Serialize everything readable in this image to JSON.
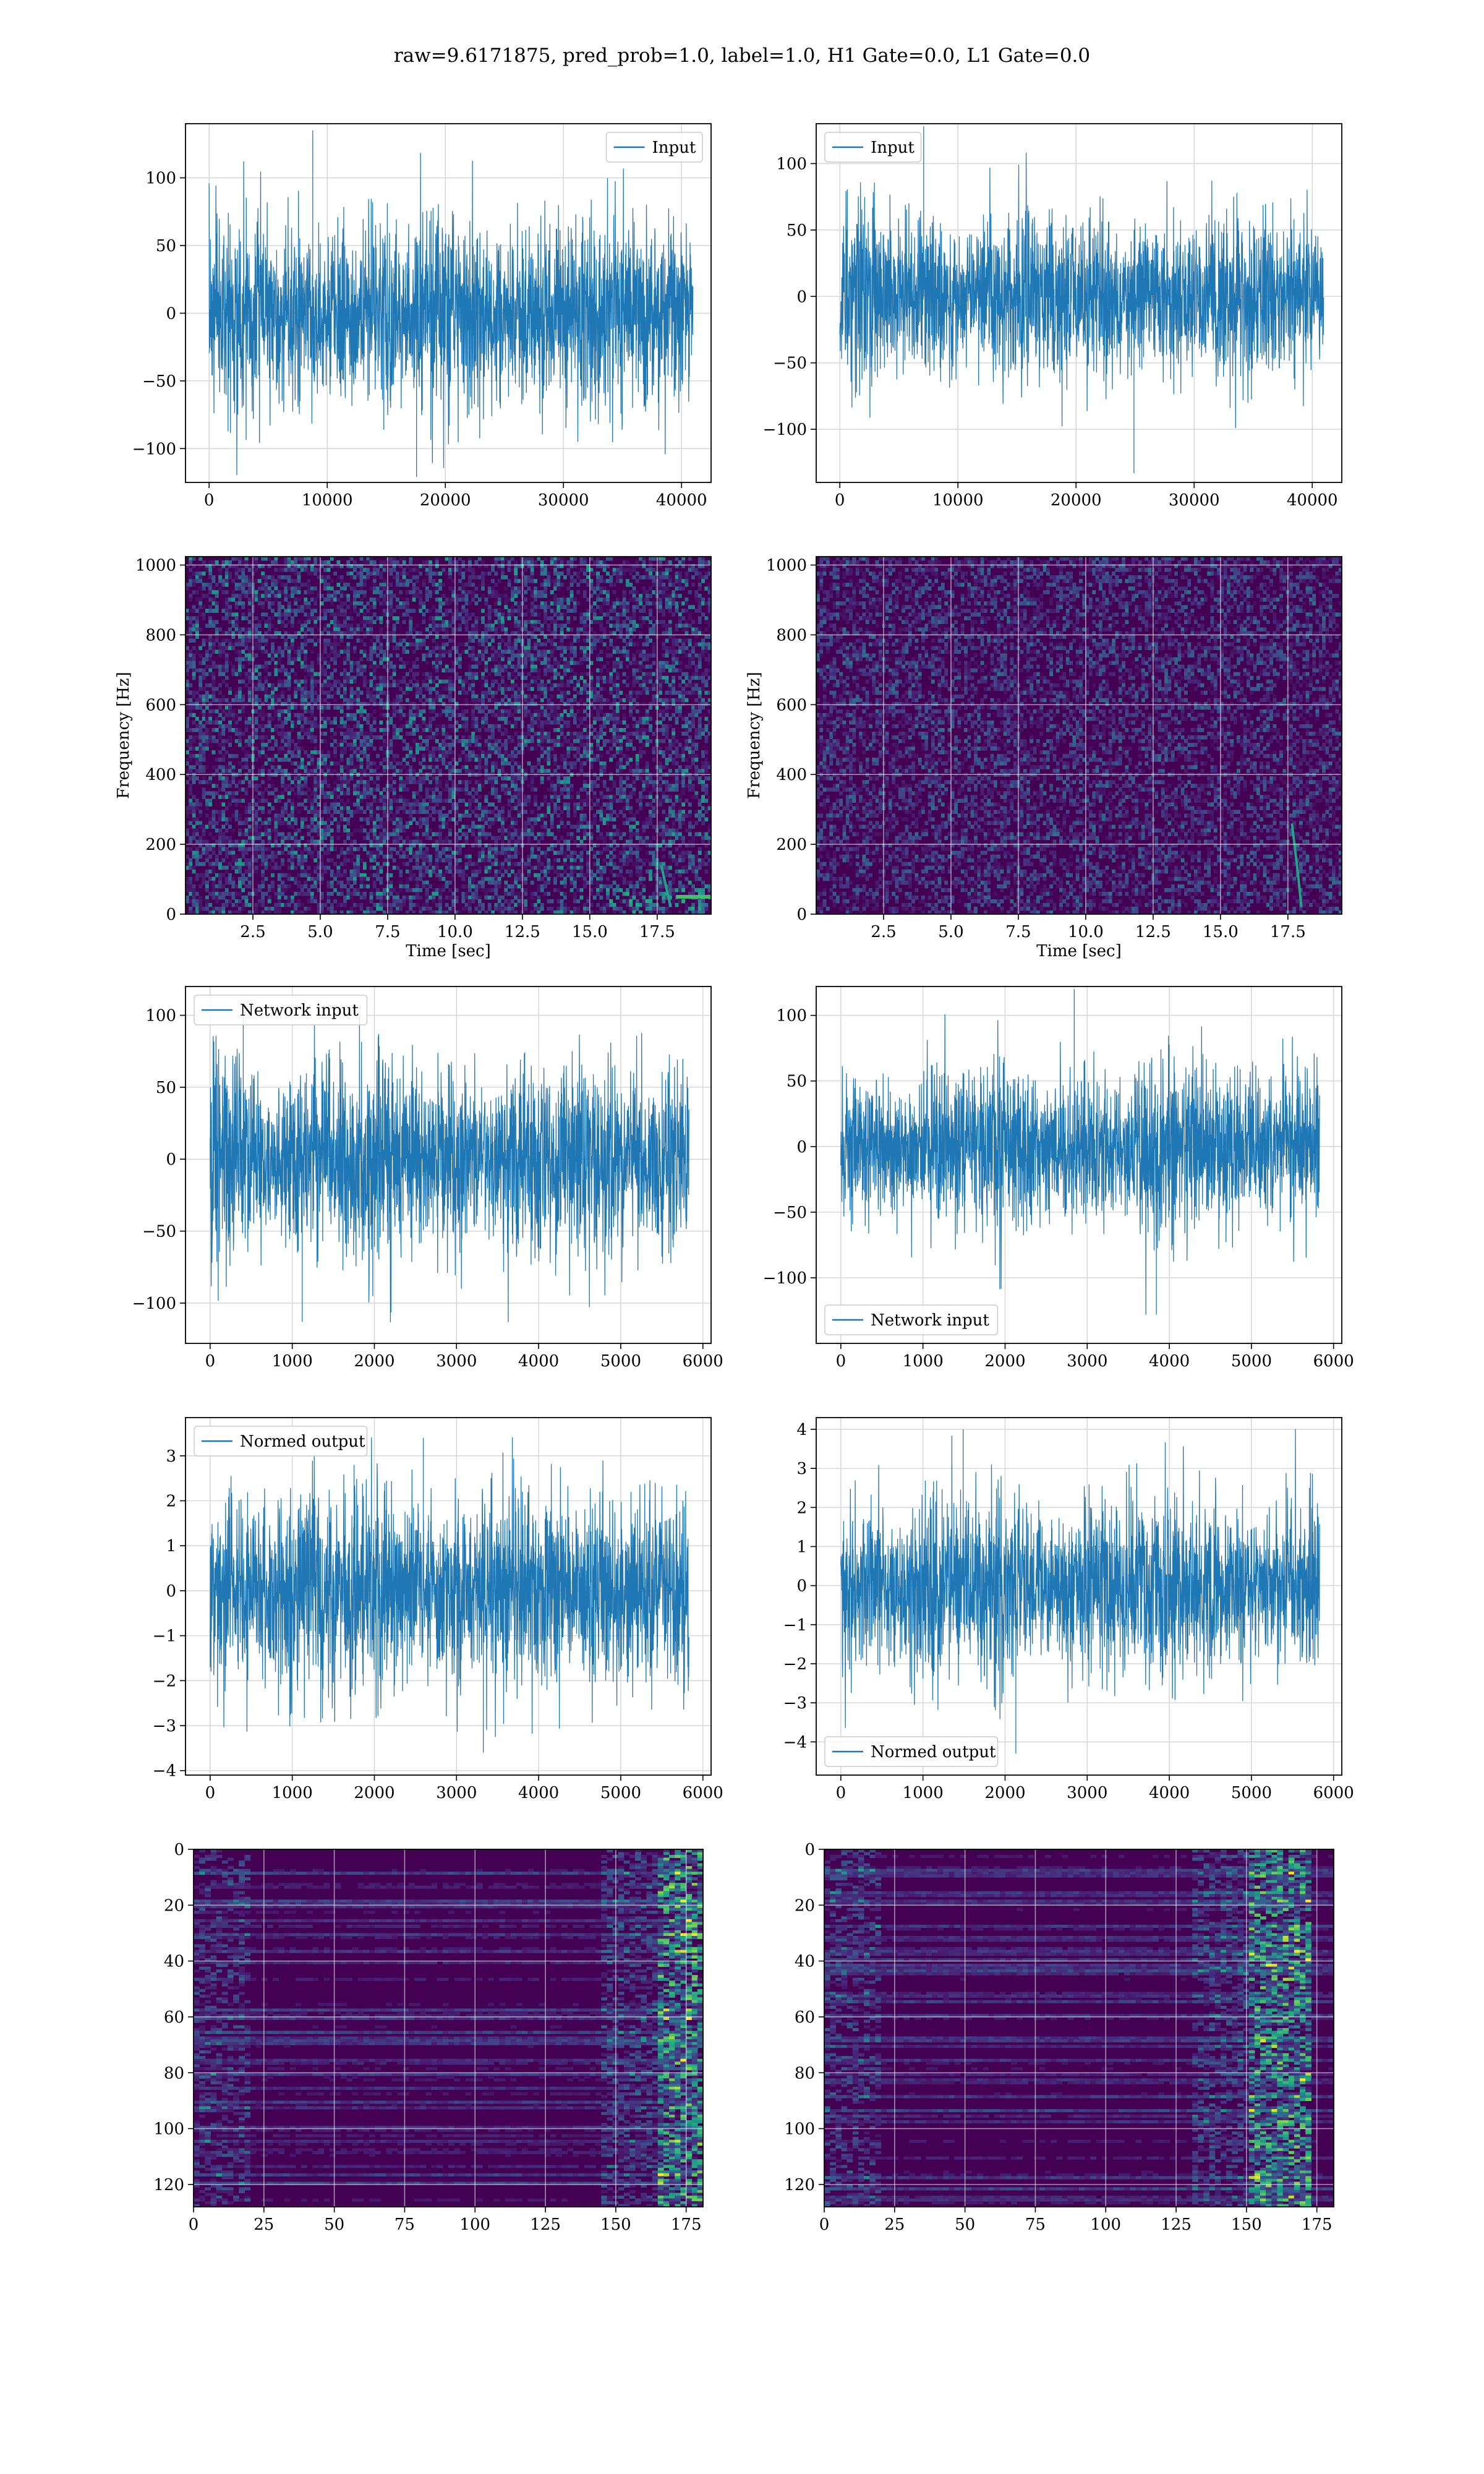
{
  "figure": {
    "suptitle": "raw=9.6171875, pred_prob=1.0, label=1.0, H1 Gate=0.0, L1 Gate=0.0"
  },
  "colors": {
    "series": "#1f77b4",
    "viridis_low": "#440154",
    "viridis_mid": "#21918c",
    "viridis_high": "#fde725"
  },
  "chart_data": [
    {
      "id": "ts-input-h1",
      "type": "line",
      "legend": [
        "Input"
      ],
      "legend_loc": "upper right",
      "xlim": [
        -2000,
        42500
      ],
      "ylim": [
        -125,
        140
      ],
      "xticks": [
        0,
        10000,
        20000,
        30000,
        40000
      ],
      "xtick_labels": [
        "0",
        "10000",
        "20000",
        "30000",
        "40000"
      ],
      "yticks": [
        -100,
        -50,
        0,
        50,
        100
      ],
      "ytick_labels": [
        "−100",
        "−50",
        "0",
        "50",
        "100"
      ],
      "xlabel": "",
      "ylabel": "",
      "grid": true,
      "signal": {
        "x_range": [
          0,
          40960
        ],
        "envelope_std": 28,
        "peak": 135,
        "trough": -121
      }
    },
    {
      "id": "ts-input-l1",
      "type": "line",
      "legend": [
        "Input"
      ],
      "legend_loc": "upper left",
      "xlim": [
        -2000,
        42500
      ],
      "ylim": [
        -140,
        130
      ],
      "xticks": [
        0,
        10000,
        20000,
        30000,
        40000
      ],
      "xtick_labels": [
        "0",
        "10000",
        "20000",
        "30000",
        "40000"
      ],
      "yticks": [
        -100,
        -50,
        0,
        50,
        100
      ],
      "ytick_labels": [
        "−100",
        "−50",
        "0",
        "50",
        "100"
      ],
      "xlabel": "",
      "ylabel": "",
      "grid": true,
      "signal": {
        "x_range": [
          0,
          40960
        ],
        "envelope_std": 26,
        "peak": 128,
        "trough": -133
      }
    },
    {
      "id": "spec-h1",
      "type": "heatmap",
      "xlim": [
        0,
        19.5
      ],
      "ylim": [
        0,
        1024
      ],
      "xticks": [
        2.5,
        5.0,
        7.5,
        10.0,
        12.5,
        15.0,
        17.5
      ],
      "xtick_labels": [
        "2.5",
        "5.0",
        "7.5",
        "10.0",
        "12.5",
        "15.0",
        "17.5"
      ],
      "yticks": [
        0,
        200,
        400,
        600,
        800,
        1000
      ],
      "ytick_labels": [
        "0",
        "200",
        "400",
        "600",
        "800",
        "1000"
      ],
      "xlabel": "Time [sec]",
      "ylabel": "Frequency [Hz]",
      "grid": true,
      "features": {
        "chirp_time": 18.0,
        "low_band_hz": 50,
        "colormap": "viridis"
      }
    },
    {
      "id": "spec-l1",
      "type": "heatmap",
      "xlim": [
        0,
        19.5
      ],
      "ylim": [
        0,
        1024
      ],
      "xticks": [
        2.5,
        5.0,
        7.5,
        10.0,
        12.5,
        15.0,
        17.5
      ],
      "xtick_labels": [
        "2.5",
        "5.0",
        "7.5",
        "10.0",
        "12.5",
        "15.0",
        "17.5"
      ],
      "yticks": [
        0,
        200,
        400,
        600,
        800,
        1000
      ],
      "ytick_labels": [
        "0",
        "200",
        "400",
        "600",
        "800",
        "1000"
      ],
      "xlabel": "Time [sec]",
      "ylabel": "Frequency [Hz]",
      "grid": true,
      "features": {
        "chirp_time": 18.0,
        "chirp_top_hz": 260,
        "colormap": "viridis"
      }
    },
    {
      "id": "ts-network-h1",
      "type": "line",
      "legend": [
        "Network input"
      ],
      "legend_loc": "upper left",
      "xlim": [
        -300,
        6100
      ],
      "ylim": [
        -128,
        120
      ],
      "xticks": [
        0,
        1000,
        2000,
        3000,
        4000,
        5000,
        6000
      ],
      "xtick_labels": [
        "0",
        "1000",
        "2000",
        "3000",
        "4000",
        "5000",
        "6000"
      ],
      "yticks": [
        -100,
        -50,
        0,
        50,
        100
      ],
      "ytick_labels": [
        "−100",
        "−50",
        "0",
        "50",
        "100"
      ],
      "xlabel": "",
      "ylabel": "",
      "grid": true,
      "signal": {
        "x_range": [
          0,
          5830
        ],
        "envelope_std": 28,
        "peak": 108,
        "trough": -113
      }
    },
    {
      "id": "ts-network-l1",
      "type": "line",
      "legend": [
        "Network input"
      ],
      "legend_loc": "lower left",
      "xlim": [
        -300,
        6100
      ],
      "ylim": [
        -150,
        122
      ],
      "xticks": [
        0,
        1000,
        2000,
        3000,
        4000,
        5000,
        6000
      ],
      "xtick_labels": [
        "0",
        "1000",
        "2000",
        "3000",
        "4000",
        "5000",
        "6000"
      ],
      "yticks": [
        -100,
        -50,
        0,
        50,
        100
      ],
      "ytick_labels": [
        "−100",
        "−50",
        "0",
        "50",
        "100"
      ],
      "xlabel": "",
      "ylabel": "",
      "grid": true,
      "signal": {
        "x_range": [
          0,
          5830
        ],
        "envelope_std": 25,
        "peak": 120,
        "trough": -128
      }
    },
    {
      "id": "ts-normed-h1",
      "type": "line",
      "legend": [
        "Normed output"
      ],
      "legend_loc": "upper left",
      "xlim": [
        -300,
        6100
      ],
      "ylim": [
        -4.1,
        3.85
      ],
      "xticks": [
        0,
        1000,
        2000,
        3000,
        4000,
        5000,
        6000
      ],
      "xtick_labels": [
        "0",
        "1000",
        "2000",
        "3000",
        "4000",
        "5000",
        "6000"
      ],
      "yticks": [
        -4,
        -3,
        -2,
        -1,
        0,
        1,
        2,
        3
      ],
      "ytick_labels": [
        "−4",
        "−3",
        "−2",
        "−1",
        "0",
        "1",
        "2",
        "3"
      ],
      "xlabel": "",
      "ylabel": "",
      "grid": true,
      "signal": {
        "x_range": [
          0,
          5830
        ],
        "envelope_std": 0.95,
        "peak": 3.4,
        "trough": -3.6
      }
    },
    {
      "id": "ts-normed-l1",
      "type": "line",
      "legend": [
        "Normed output"
      ],
      "legend_loc": "lower left",
      "xlim": [
        -300,
        6100
      ],
      "ylim": [
        -4.85,
        4.3
      ],
      "xticks": [
        0,
        1000,
        2000,
        3000,
        4000,
        5000,
        6000
      ],
      "xtick_labels": [
        "0",
        "1000",
        "2000",
        "3000",
        "4000",
        "5000",
        "6000"
      ],
      "yticks": [
        -4,
        -3,
        -2,
        -1,
        0,
        1,
        2,
        3,
        4
      ],
      "ytick_labels": [
        "−4",
        "−3",
        "−2",
        "−1",
        "0",
        "1",
        "2",
        "3",
        "4"
      ],
      "xlabel": "",
      "ylabel": "",
      "grid": true,
      "signal": {
        "x_range": [
          0,
          5830
        ],
        "envelope_std": 0.95,
        "peak": 4.0,
        "trough": -4.3
      }
    },
    {
      "id": "fmap-h1",
      "type": "heatmap",
      "xlim": [
        0,
        181
      ],
      "ylim": [
        128,
        0
      ],
      "xticks": [
        0,
        25,
        50,
        75,
        100,
        125,
        150,
        175
      ],
      "xtick_labels": [
        "0",
        "25",
        "50",
        "75",
        "100",
        "125",
        "150",
        "175"
      ],
      "yticks": [
        0,
        20,
        40,
        60,
        80,
        100,
        120
      ],
      "ytick_labels": [
        "0",
        "20",
        "40",
        "60",
        "80",
        "100",
        "120"
      ],
      "xlabel": "",
      "ylabel": "",
      "grid": true,
      "features": {
        "rows": 128,
        "cols": 181,
        "hot_cols": [
          165,
          181
        ],
        "colormap": "viridis"
      }
    },
    {
      "id": "fmap-l1",
      "type": "heatmap",
      "xlim": [
        0,
        181
      ],
      "ylim": [
        128,
        0
      ],
      "xticks": [
        0,
        25,
        50,
        75,
        100,
        125,
        150,
        175
      ],
      "xtick_labels": [
        "0",
        "25",
        "50",
        "75",
        "100",
        "125",
        "150",
        "175"
      ],
      "yticks": [
        0,
        20,
        40,
        60,
        80,
        100,
        120
      ],
      "ytick_labels": [
        "0",
        "20",
        "40",
        "60",
        "80",
        "100",
        "120"
      ],
      "xlabel": "",
      "ylabel": "",
      "grid": true,
      "features": {
        "rows": 128,
        "cols": 181,
        "hot_cols": [
          150,
          172
        ],
        "colormap": "viridis"
      }
    }
  ]
}
